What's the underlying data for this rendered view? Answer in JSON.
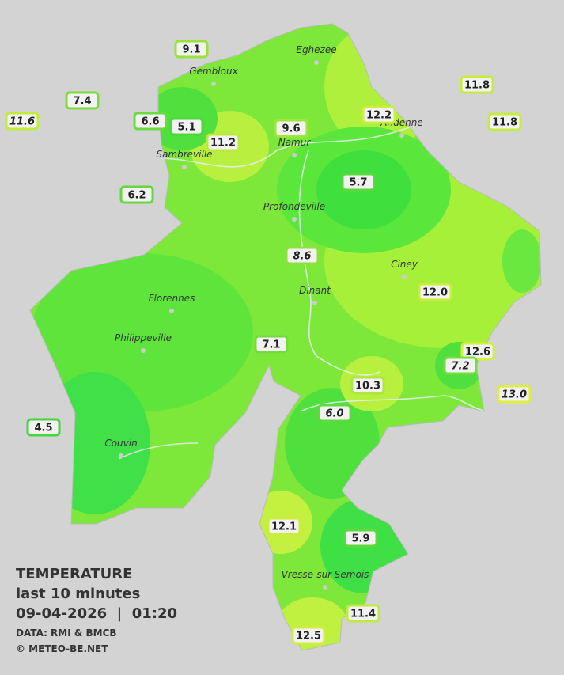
{
  "header": {
    "title": "TEMPERATURE",
    "subtitle": "last 10 minutes",
    "timestamp": "09-04-2026  |  01:20",
    "source": "DATA: RMI & BMCB",
    "credit": "© METEO-BE.NET"
  },
  "towns": [
    "Eghezee",
    "Gembloux",
    "Andenne",
    "Namur",
    "Sambreville",
    "Profondeville",
    "Ciney",
    "Dinant",
    "Florennes",
    "Philippeville",
    "Couvin",
    "Vresse-sur-Semois"
  ],
  "stations": [
    "9.1",
    "7.4",
    "11.6",
    "6.6",
    "5.1",
    "11.2",
    "9.6",
    "12.2",
    "11.8",
    "11.8",
    "5.7",
    "6.2",
    "8.6",
    "12.0",
    "7.1",
    "12.6",
    "7.2",
    "10.3",
    "13.0",
    "6.0",
    "4.5",
    "12.1",
    "5.9",
    "11.4",
    "12.5"
  ]
}
